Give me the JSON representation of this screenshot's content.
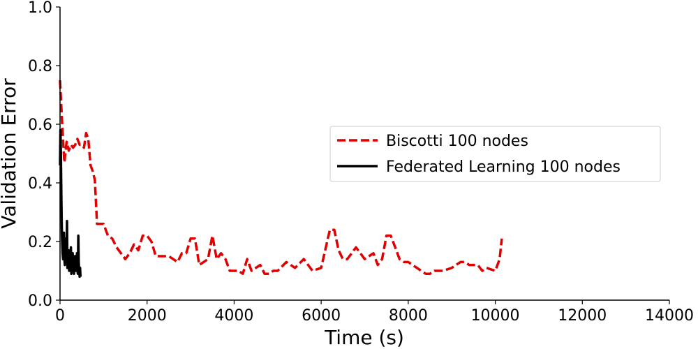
{
  "chart_data": {
    "type": "line",
    "xlabel": "Time (s)",
    "ylabel": "Validation Error",
    "xlim": [
      0,
      14000
    ],
    "ylim": [
      0,
      1.0
    ],
    "xticks": [
      "0",
      "2000",
      "4000",
      "6000",
      "8000",
      "10000",
      "12000",
      "14000"
    ],
    "yticks": [
      "0.0",
      "0.2",
      "0.4",
      "0.6",
      "0.8",
      "1.0"
    ],
    "grid": false,
    "legend_position": "center-right",
    "series": [
      {
        "name": "Biscotti 100 nodes",
        "color": "#e00000",
        "style": "dashed",
        "x": [
          0,
          50,
          100,
          150,
          200,
          250,
          300,
          350,
          400,
          450,
          500,
          550,
          600,
          650,
          700,
          750,
          800,
          850,
          900,
          950,
          1000,
          1100,
          1200,
          1300,
          1400,
          1500,
          1600,
          1700,
          1800,
          1900,
          2000,
          2100,
          2200,
          2300,
          2400,
          2500,
          2600,
          2700,
          2800,
          2900,
          3000,
          3100,
          3200,
          3300,
          3400,
          3500,
          3600,
          3700,
          3800,
          3900,
          4000,
          4100,
          4200,
          4300,
          4400,
          4500,
          4600,
          4700,
          4800,
          4900,
          5000,
          5200,
          5400,
          5600,
          5800,
          6000,
          6200,
          6300,
          6400,
          6500,
          6600,
          6800,
          7000,
          7100,
          7200,
          7300,
          7400,
          7500,
          7600,
          7700,
          7800,
          7900,
          8000,
          8100,
          8200,
          8300,
          8400,
          8500,
          8600,
          8700,
          8800,
          9000,
          9200,
          9300,
          9400,
          9600,
          9700,
          9800,
          10000,
          10100,
          10150
        ],
        "y": [
          0.75,
          0.6,
          0.47,
          0.54,
          0.51,
          0.53,
          0.52,
          0.53,
          0.55,
          0.53,
          0.53,
          0.52,
          0.57,
          0.55,
          0.46,
          0.44,
          0.41,
          0.26,
          0.26,
          0.26,
          0.26,
          0.22,
          0.21,
          0.18,
          0.16,
          0.14,
          0.16,
          0.19,
          0.17,
          0.22,
          0.22,
          0.2,
          0.15,
          0.15,
          0.15,
          0.15,
          0.14,
          0.13,
          0.16,
          0.16,
          0.21,
          0.21,
          0.12,
          0.13,
          0.14,
          0.22,
          0.14,
          0.16,
          0.14,
          0.1,
          0.1,
          0.1,
          0.09,
          0.14,
          0.1,
          0.11,
          0.12,
          0.09,
          0.09,
          0.1,
          0.1,
          0.13,
          0.11,
          0.14,
          0.1,
          0.11,
          0.24,
          0.24,
          0.17,
          0.14,
          0.14,
          0.18,
          0.14,
          0.15,
          0.16,
          0.12,
          0.14,
          0.22,
          0.22,
          0.18,
          0.14,
          0.13,
          0.13,
          0.12,
          0.11,
          0.1,
          0.09,
          0.09,
          0.1,
          0.1,
          0.1,
          0.11,
          0.13,
          0.13,
          0.12,
          0.12,
          0.1,
          0.11,
          0.1,
          0.14,
          0.21
        ]
      },
      {
        "name": "Federated Learning 100 nodes",
        "color": "#000000",
        "style": "solid",
        "x": [
          0,
          10,
          20,
          30,
          40,
          50,
          60,
          70,
          80,
          90,
          100,
          110,
          120,
          130,
          140,
          150,
          160,
          170,
          180,
          190,
          200,
          210,
          220,
          230,
          240,
          250,
          260,
          270,
          280,
          290,
          300,
          310,
          320,
          330,
          340,
          350,
          360,
          370,
          380,
          390,
          400,
          410,
          420,
          430,
          440,
          450,
          460,
          470
        ],
        "y": [
          0.46,
          0.58,
          0.5,
          0.35,
          0.25,
          0.2,
          0.16,
          0.14,
          0.19,
          0.23,
          0.14,
          0.12,
          0.2,
          0.13,
          0.21,
          0.14,
          0.27,
          0.11,
          0.16,
          0.13,
          0.17,
          0.1,
          0.14,
          0.16,
          0.11,
          0.18,
          0.09,
          0.14,
          0.12,
          0.16,
          0.1,
          0.15,
          0.09,
          0.13,
          0.11,
          0.15,
          0.1,
          0.14,
          0.12,
          0.16,
          0.1,
          0.09,
          0.22,
          0.13,
          0.1,
          0.08,
          0.11,
          0.08
        ]
      }
    ]
  }
}
